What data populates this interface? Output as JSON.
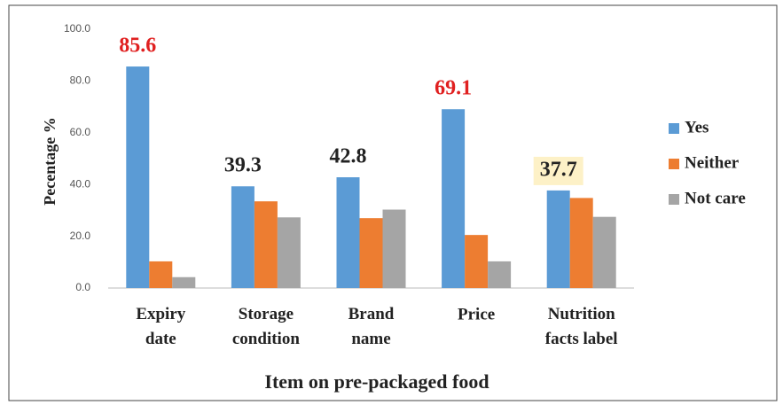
{
  "chart_data": {
    "type": "bar",
    "x_label": "Item on pre-packaged food",
    "y_label": "Pecentage %",
    "categories": [
      "Expiry date",
      "Storage condition",
      "Brand name",
      "Price",
      "Nutrition facts label"
    ],
    "series": [
      {
        "name": "Yes",
        "color": "#5b9bd5",
        "values": [
          85.6,
          39.3,
          42.8,
          69.1,
          37.7
        ],
        "label_colors": [
          "#e02020",
          "#222222",
          "#222222",
          "#e02020",
          "#222222"
        ],
        "label_backgrounds": [
          null,
          null,
          null,
          null,
          "#fdf1c7"
        ]
      },
      {
        "name": "Neither",
        "color": "#ed7d31",
        "values": [
          10.3,
          33.5,
          27.0,
          20.5,
          34.8
        ]
      },
      {
        "name": "Not care",
        "color": "#a5a5a5",
        "values": [
          4.2,
          27.3,
          30.3,
          10.3,
          27.5
        ]
      }
    ],
    "ylim": [
      0,
      100
    ],
    "yticks": [
      {
        "value": 0,
        "label": "0.0"
      },
      {
        "value": 20,
        "label": "20.0"
      },
      {
        "value": 40,
        "label": "40.0"
      },
      {
        "value": 60,
        "label": "60.0"
      },
      {
        "value": 80,
        "label": "80.0"
      },
      {
        "value": 100,
        "label": "100.0"
      }
    ],
    "grid": false,
    "legend": "right"
  }
}
